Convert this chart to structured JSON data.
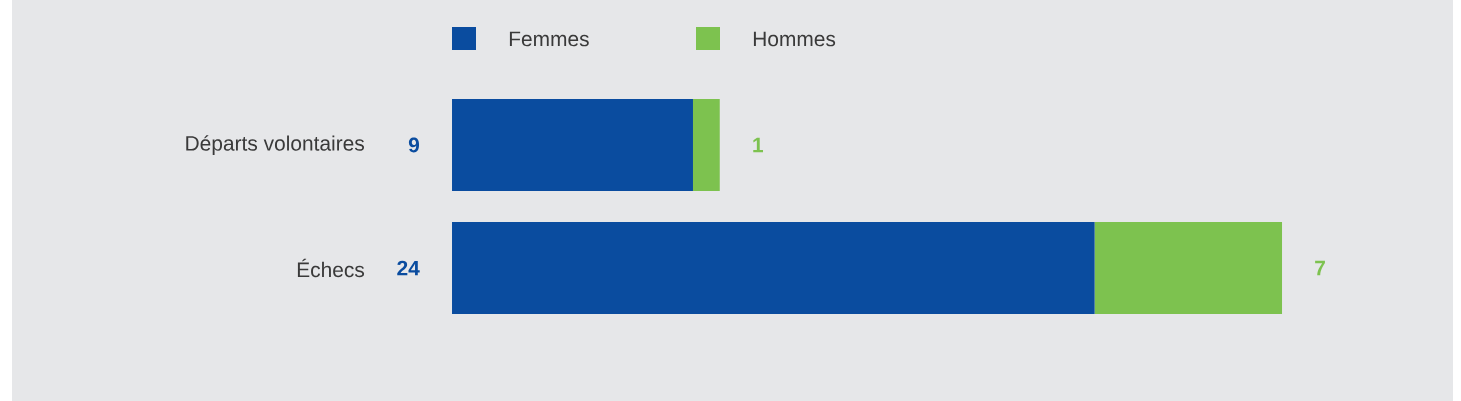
{
  "chart_data": {
    "type": "bar",
    "orientation": "horizontal",
    "stacked": true,
    "data_labels": true,
    "legend": "top",
    "categories": [
      "Départs volontaires",
      "Échecs"
    ],
    "series": [
      {
        "name": "Femmes",
        "color": "#0a4c9f",
        "values": [
          9,
          24
        ]
      },
      {
        "name": "Hommes",
        "color": "#7dc24f",
        "values": [
          1,
          7
        ]
      }
    ]
  }
}
